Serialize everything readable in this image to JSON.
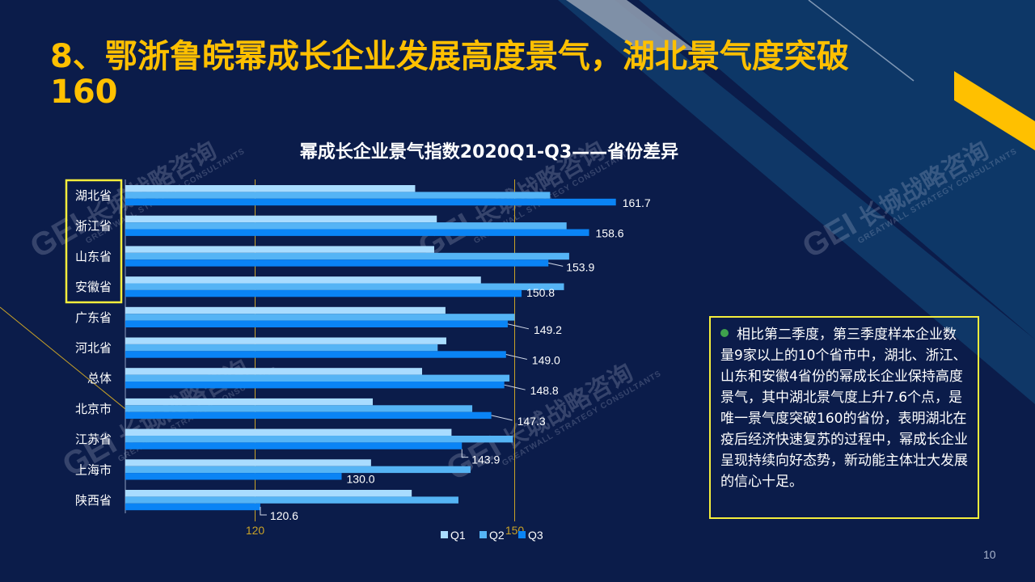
{
  "slide": {
    "title": "8、鄂浙鲁皖幂成长企业发展高度景气，湖北景气度突破160",
    "page_number": "10"
  },
  "watermark": {
    "brand": "GEI",
    "name_cn": "长城战略咨询",
    "name_en": "GREATWALL STRATEGY CONSULTANTS"
  },
  "note": {
    "text": "相比第二季度，第三季度样本企业数量9家以上的10个省市中，湖北、浙江、山东和安徽4省份的幂成长企业保持高度景气，其中湖北景气度上升7.6个点，是唯一景气度突破160的省份，表明湖北在疫后经济快速复苏的过程中，幂成长企业呈现持续向好态势，新动能主体壮大发展的信心十足。"
  },
  "colors": {
    "background": "#0b1c4a",
    "title": "#ffc000",
    "q1": "#a9dcff",
    "q2": "#55b4f5",
    "q3": "#0a84f5",
    "highlight_box": "#f5ee3c",
    "gridline": "#c9a227"
  },
  "chart_data": {
    "type": "bar",
    "orientation": "horizontal",
    "title": "幂成长企业景气指数2020Q1-Q3——省份差异",
    "categories": [
      "湖北省",
      "浙江省",
      "山东省",
      "安徽省",
      "广东省",
      "河北省",
      "总体",
      "北京市",
      "江苏省",
      "上海市",
      "陕西省"
    ],
    "highlighted_categories": [
      "湖北省",
      "浙江省",
      "山东省",
      "安徽省"
    ],
    "series": [
      {
        "name": "Q1",
        "values": [
          138.5,
          141.0,
          140.7,
          146.1,
          142.0,
          142.1,
          139.3,
          133.6,
          142.7,
          133.4,
          138.1
        ]
      },
      {
        "name": "Q2",
        "values": [
          154.1,
          156.0,
          156.3,
          155.7,
          150.0,
          141.1,
          149.4,
          145.1,
          149.8,
          144.9,
          143.5
        ]
      },
      {
        "name": "Q3",
        "values": [
          161.7,
          158.6,
          153.9,
          150.8,
          149.2,
          149.0,
          148.8,
          147.3,
          143.9,
          130.0,
          120.6
        ]
      }
    ],
    "data_labels": [
      "161.7",
      "158.6",
      "153.9",
      "150.8",
      "149.2",
      "149.0",
      "148.8",
      "147.3",
      "143.9",
      "130.0",
      "120.6"
    ],
    "reference_lines": [
      120,
      150
    ],
    "xlim": [
      105,
      170
    ],
    "legend": {
      "position": "bottom",
      "labels": [
        "Q1",
        "Q2",
        "Q3"
      ]
    }
  }
}
